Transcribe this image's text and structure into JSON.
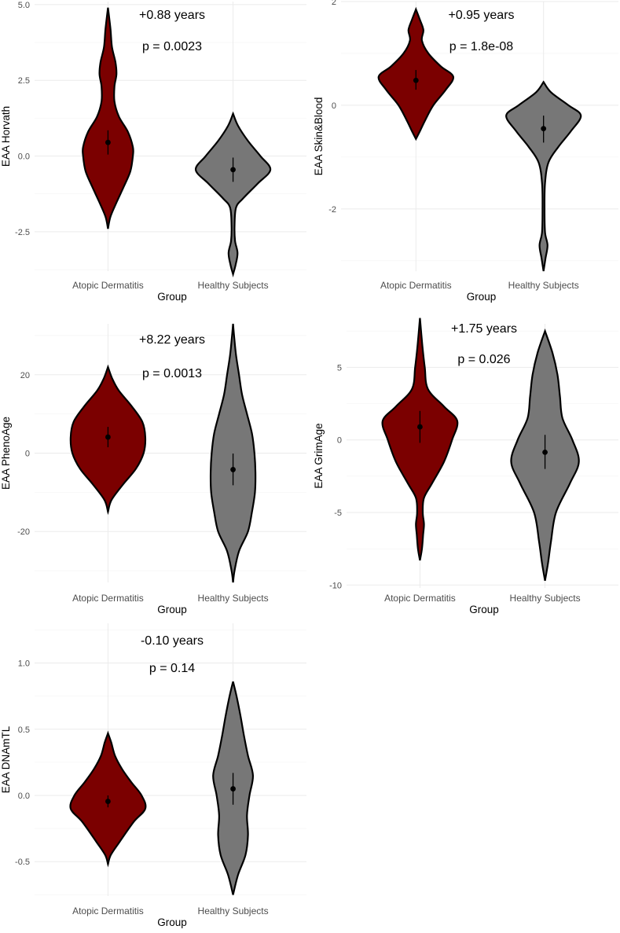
{
  "colors": {
    "atopic": "#7b0000",
    "healthy": "#777777"
  },
  "chart_data": [
    {
      "type": "violin",
      "id": "horvath",
      "ylabel": "EAA Horvath",
      "xlabel": "Group",
      "categories": [
        "Atopic Dermatitis",
        "Healthy Subjects"
      ],
      "ylim": [
        -3.8,
        5.1
      ],
      "ticks": [
        -2.5,
        0.0,
        2.5,
        5.0
      ],
      "tick_labels": [
        "-2.5",
        "0.0",
        "2.5",
        "5.0"
      ],
      "annotations": [
        "+0.88 years",
        "p = 0.0023"
      ],
      "series": [
        {
          "name": "Atopic Dermatitis",
          "mean": 0.45,
          "ci": [
            0.05,
            0.85
          ],
          "profile": [
            [
              -2.4,
              0
            ],
            [
              -2.0,
              0.05
            ],
            [
              -1.5,
              0.18
            ],
            [
              -1.0,
              0.32
            ],
            [
              -0.5,
              0.45
            ],
            [
              0.0,
              0.5
            ],
            [
              0.3,
              0.5
            ],
            [
              0.8,
              0.4
            ],
            [
              1.3,
              0.22
            ],
            [
              1.8,
              0.13
            ],
            [
              2.3,
              0.13
            ],
            [
              2.7,
              0.17
            ],
            [
              3.1,
              0.15
            ],
            [
              3.6,
              0.08
            ],
            [
              4.2,
              0.05
            ],
            [
              4.9,
              0
            ]
          ]
        },
        {
          "name": "Healthy Subjects",
          "mean": -0.45,
          "ci": [
            -0.85,
            -0.05
          ],
          "profile": [
            [
              -3.9,
              0
            ],
            [
              -3.6,
              0.05
            ],
            [
              -3.2,
              0.09
            ],
            [
              -2.8,
              0.04
            ],
            [
              -2.3,
              0.03
            ],
            [
              -1.7,
              0.06
            ],
            [
              -1.4,
              0.2
            ],
            [
              -0.9,
              0.5
            ],
            [
              -0.45,
              0.75
            ],
            [
              0.0,
              0.55
            ],
            [
              0.5,
              0.3
            ],
            [
              1.0,
              0.1
            ],
            [
              1.4,
              0
            ]
          ]
        }
      ]
    },
    {
      "type": "violin",
      "id": "skinblood",
      "ylabel": "EAA Skin&Blood",
      "xlabel": "Group",
      "categories": [
        "Atopic Dermatitis",
        "Healthy Subjects"
      ],
      "ylim": [
        -3.2,
        2.0
      ],
      "ticks": [
        -2,
        0,
        2
      ],
      "tick_labels": [
        "-2",
        "0",
        "2"
      ],
      "annotations": [
        "+0.95 years",
        "p = 1.8e-08"
      ],
      "series": [
        {
          "name": "Atopic Dermatitis",
          "mean": 0.48,
          "ci": [
            0.3,
            0.68
          ],
          "profile": [
            [
              -0.65,
              0
            ],
            [
              -0.5,
              0.08
            ],
            [
              -0.3,
              0.18
            ],
            [
              0.0,
              0.35
            ],
            [
              0.3,
              0.6
            ],
            [
              0.55,
              0.75
            ],
            [
              0.75,
              0.5
            ],
            [
              1.0,
              0.25
            ],
            [
              1.25,
              0.12
            ],
            [
              1.45,
              0.15
            ],
            [
              1.65,
              0.08
            ],
            [
              1.85,
              0
            ]
          ]
        },
        {
          "name": "Healthy Subjects",
          "mean": -0.45,
          "ci": [
            -0.72,
            -0.2
          ],
          "profile": [
            [
              -3.2,
              0
            ],
            [
              -2.95,
              0.04
            ],
            [
              -2.7,
              0.08
            ],
            [
              -2.45,
              0.03
            ],
            [
              -2.0,
              0.02
            ],
            [
              -1.5,
              0.03
            ],
            [
              -1.1,
              0.1
            ],
            [
              -0.8,
              0.3
            ],
            [
              -0.5,
              0.55
            ],
            [
              -0.2,
              0.75
            ],
            [
              0.0,
              0.5
            ],
            [
              0.25,
              0.15
            ],
            [
              0.45,
              0
            ]
          ]
        }
      ]
    },
    {
      "type": "violin",
      "id": "phenoage",
      "ylabel": "EAA PhenoAge",
      "xlabel": "Group",
      "categories": [
        "Atopic Dermatitis",
        "Healthy Subjects"
      ],
      "ylim": [
        -33,
        33
      ],
      "ticks": [
        -20,
        0,
        20
      ],
      "tick_labels": [
        "-20",
        "0",
        "20"
      ],
      "annotations": [
        "+8.22 years",
        "p = 0.0013"
      ],
      "series": [
        {
          "name": "Atopic Dermatitis",
          "mean": 4.1,
          "ci": [
            1.5,
            6.7
          ],
          "profile": [
            [
              -15,
              0
            ],
            [
              -12,
              0.08
            ],
            [
              -8,
              0.35
            ],
            [
              -4,
              0.65
            ],
            [
              0,
              0.83
            ],
            [
              4,
              0.87
            ],
            [
              8,
              0.8
            ],
            [
              12,
              0.55
            ],
            [
              16,
              0.25
            ],
            [
              19,
              0.1
            ],
            [
              22,
              0
            ]
          ]
        },
        {
          "name": "Healthy Subjects",
          "mean": -4.2,
          "ci": [
            -8.2,
            -0.1
          ],
          "profile": [
            [
              -33,
              0
            ],
            [
              -30,
              0.03
            ],
            [
              -25,
              0.12
            ],
            [
              -20,
              0.3
            ],
            [
              -15,
              0.38
            ],
            [
              -10,
              0.44
            ],
            [
              -5,
              0.45
            ],
            [
              0,
              0.43
            ],
            [
              5,
              0.38
            ],
            [
              10,
              0.28
            ],
            [
              15,
              0.18
            ],
            [
              20,
              0.12
            ],
            [
              25,
              0.06
            ],
            [
              30,
              0.02
            ],
            [
              33,
              0
            ]
          ]
        }
      ]
    },
    {
      "type": "violin",
      "id": "grimage",
      "ylabel": "EAA GrimAge",
      "xlabel": "Group",
      "categories": [
        "Atopic Dermatitis",
        "Healthy Subjects"
      ],
      "ylim": [
        -10.2,
        8.0
      ],
      "ticks": [
        -10,
        -5,
        0,
        5
      ],
      "tick_labels": [
        "-10",
        "-5",
        "0",
        "5"
      ],
      "annotations": [
        "+1.75 years",
        "p = 0.026"
      ],
      "series": [
        {
          "name": "Atopic Dermatitis",
          "mean": 0.9,
          "ci": [
            -0.2,
            2.0
          ],
          "profile": [
            [
              -8.3,
              0
            ],
            [
              -7.5,
              0.05
            ],
            [
              -6.5,
              0.08
            ],
            [
              -5.8,
              0.1
            ],
            [
              -5.0,
              0.07
            ],
            [
              -4.0,
              0.1
            ],
            [
              -3.0,
              0.3
            ],
            [
              -1.5,
              0.6
            ],
            [
              0,
              0.8
            ],
            [
              1.3,
              0.93
            ],
            [
              2.3,
              0.6
            ],
            [
              3.5,
              0.2
            ],
            [
              5.0,
              0.12
            ],
            [
              6.5,
              0.06
            ],
            [
              8.4,
              0
            ]
          ]
        },
        {
          "name": "Healthy Subjects",
          "mean": -0.85,
          "ci": [
            -2.0,
            0.35
          ],
          "profile": [
            [
              -9.7,
              0
            ],
            [
              -8.5,
              0.06
            ],
            [
              -7.0,
              0.12
            ],
            [
              -5.0,
              0.22
            ],
            [
              -3.0,
              0.5
            ],
            [
              -1.5,
              0.68
            ],
            [
              0,
              0.55
            ],
            [
              1.5,
              0.35
            ],
            [
              3.0,
              0.3
            ],
            [
              4.5,
              0.25
            ],
            [
              6.0,
              0.15
            ],
            [
              7.5,
              0
            ]
          ]
        }
      ]
    },
    {
      "type": "violin",
      "id": "dnamtl",
      "ylabel": "EAA DNAmTL",
      "xlabel": "Group",
      "categories": [
        "Atopic Dermatitis",
        "Healthy Subjects"
      ],
      "ylim": [
        -0.76,
        1.3
      ],
      "ticks": [
        -0.5,
        0.0,
        0.5,
        1.0
      ],
      "tick_labels": [
        "-0.5",
        "0.0",
        "0.5",
        "1.0"
      ],
      "annotations": [
        "-0.10 years",
        "p = 0.14"
      ],
      "series": [
        {
          "name": "Atopic Dermatitis",
          "mean": -0.045,
          "ci": [
            -0.09,
            0.0
          ],
          "profile": [
            [
              -0.52,
              0
            ],
            [
              -0.45,
              0.06
            ],
            [
              -0.35,
              0.25
            ],
            [
              -0.2,
              0.55
            ],
            [
              -0.1,
              0.8
            ],
            [
              0.0,
              0.72
            ],
            [
              0.1,
              0.5
            ],
            [
              0.2,
              0.3
            ],
            [
              0.3,
              0.15
            ],
            [
              0.4,
              0.07
            ],
            [
              0.47,
              0
            ]
          ]
        },
        {
          "name": "Healthy Subjects",
          "mean": 0.05,
          "ci": [
            -0.07,
            0.17
          ],
          "profile": [
            [
              -0.75,
              0
            ],
            [
              -0.6,
              0.1
            ],
            [
              -0.45,
              0.25
            ],
            [
              -0.3,
              0.3
            ],
            [
              -0.15,
              0.28
            ],
            [
              0.0,
              0.33
            ],
            [
              0.15,
              0.4
            ],
            [
              0.3,
              0.3
            ],
            [
              0.45,
              0.22
            ],
            [
              0.6,
              0.15
            ],
            [
              0.75,
              0.07
            ],
            [
              0.86,
              0
            ]
          ]
        }
      ]
    }
  ]
}
